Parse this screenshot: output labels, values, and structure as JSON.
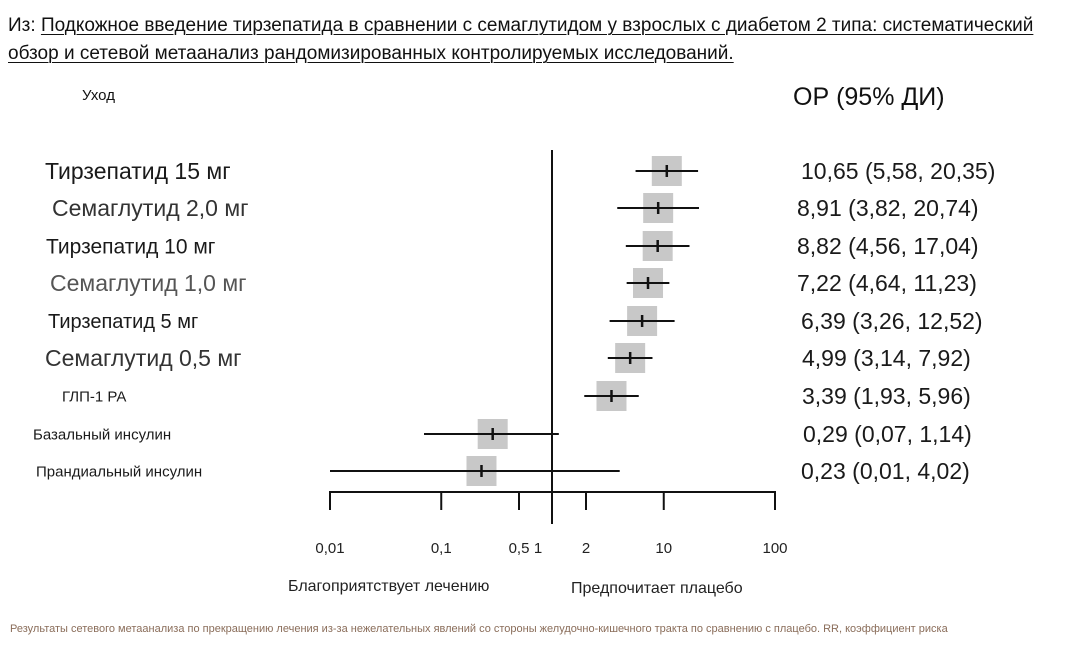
{
  "source": {
    "prefix": "Из: ",
    "title": "Подкожное введение тирзепатида в сравнении с семаглутидом у взрослых с диабетом 2 типа: систематический обзор и сетевой метаанализ рандомизированных контролируемых исследований."
  },
  "caption": "Результаты сетевого метаанализа по прекращению лечения из-за нежелательных явлений со стороны желудочно-кишечного тракта по сравнению с плацебо. RR, коэффициент риска",
  "chart_data": {
    "type": "forest",
    "scale": "log",
    "xlim": [
      0.01,
      100
    ],
    "reference_line": 1,
    "column_headers": {
      "treatment": "Уход",
      "estimate": "ОР (95% ДИ)"
    },
    "ticks": [
      {
        "value": 0.01,
        "label": "0,01"
      },
      {
        "value": 0.1,
        "label": "0,1"
      },
      {
        "value": 0.5,
        "label": "0,5"
      },
      {
        "value": 1,
        "label": "1"
      },
      {
        "value": 2,
        "label": "2"
      },
      {
        "value": 10,
        "label": "10"
      },
      {
        "value": 100,
        "label": "100"
      }
    ],
    "direction_labels": {
      "left": "Благоприятствует лечению",
      "right": "Предпочитает плацебо"
    },
    "rows": [
      {
        "name": "Тирзепатид 15 мг",
        "rr": 10.65,
        "lo": 5.58,
        "hi": 20.35,
        "text": "10,65 (5,58, 20,35)"
      },
      {
        "name": "Семаглутид 2,0 мг",
        "rr": 8.91,
        "lo": 3.82,
        "hi": 20.74,
        "text": "8,91 (3,82, 20,74)"
      },
      {
        "name": "Тирзепатид 10 мг",
        "rr": 8.82,
        "lo": 4.56,
        "hi": 17.04,
        "text": "8,82 (4,56, 17,04)"
      },
      {
        "name": "Семаглутид 1,0 мг",
        "rr": 7.22,
        "lo": 4.64,
        "hi": 11.23,
        "text": "7,22 (4,64, 11,23)"
      },
      {
        "name": "Тирзепатид 5 мг",
        "rr": 6.39,
        "lo": 3.26,
        "hi": 12.52,
        "text": "6,39 (3,26, 12,52)"
      },
      {
        "name": "Семаглутид 0,5 мг",
        "rr": 4.99,
        "lo": 3.14,
        "hi": 7.92,
        "text": "4,99 (3,14, 7,92)"
      },
      {
        "name": "ГЛП-1 РА",
        "rr": 3.39,
        "lo": 1.93,
        "hi": 5.96,
        "text": "3,39 (1,93, 5,96)"
      },
      {
        "name": "Базальный инсулин",
        "rr": 0.29,
        "lo": 0.07,
        "hi": 1.14,
        "text": "0,29 (0,07, 1,14)"
      },
      {
        "name": "Прандиальный инсулин",
        "rr": 0.23,
        "lo": 0.01,
        "hi": 4.02,
        "text": "0,23 (0,01, 4,02)"
      }
    ]
  }
}
